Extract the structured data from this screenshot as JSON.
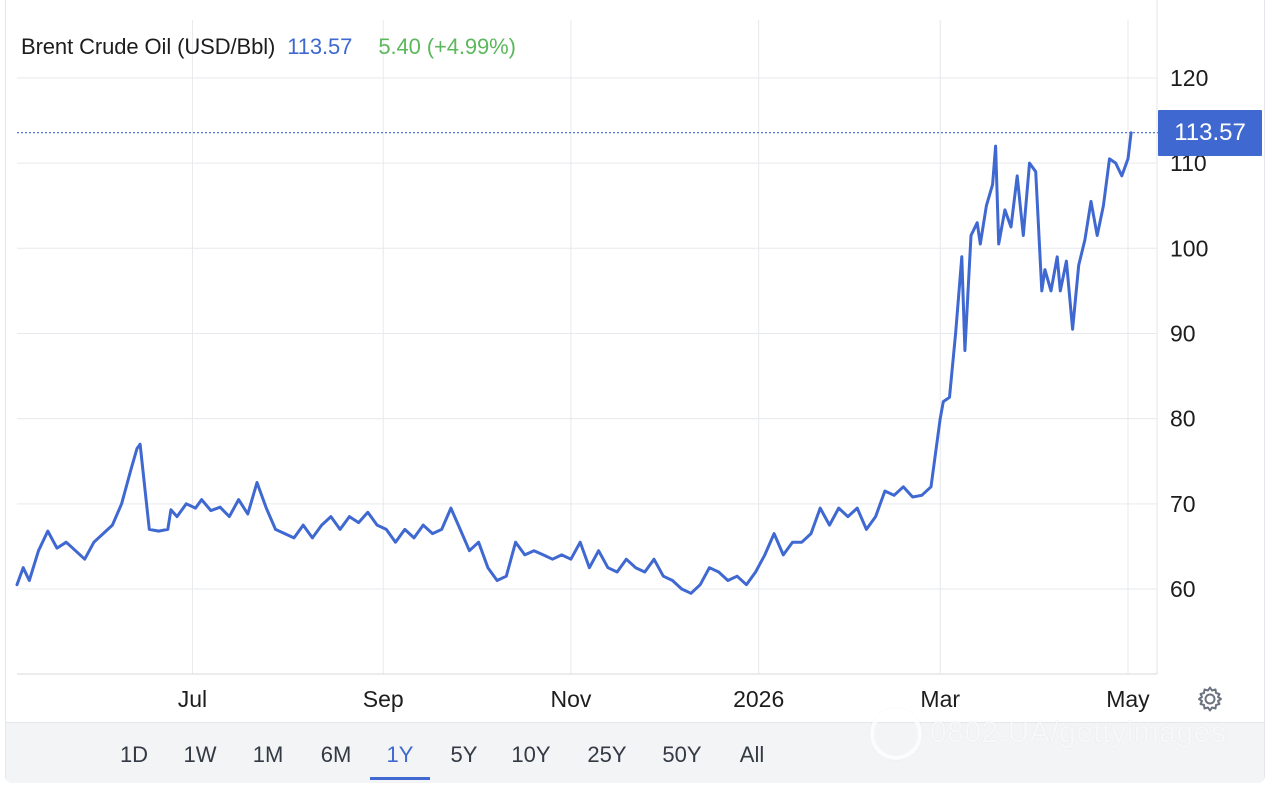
{
  "header": {
    "name": "Brent Crude Oil (USD/Bbl)",
    "price": "113.57",
    "change": "5.40 (+4.99%)"
  },
  "colors": {
    "line": "#3f68d1",
    "price_text": "#3f68d1",
    "change_text": "#5cb85c",
    "badge_bg": "#3f68d1",
    "grid": "#e6e9ed"
  },
  "price_badge": "113.57",
  "ranges": [
    {
      "label": "1D",
      "active": false
    },
    {
      "label": "1W",
      "active": false
    },
    {
      "label": "1M",
      "active": false
    },
    {
      "label": "6M",
      "active": false
    },
    {
      "label": "1Y",
      "active": true
    },
    {
      "label": "5Y",
      "active": false
    },
    {
      "label": "10Y",
      "active": false
    },
    {
      "label": "25Y",
      "active": false
    },
    {
      "label": "50Y",
      "active": false
    },
    {
      "label": "All",
      "active": false
    }
  ],
  "watermark": "0802.UA/gettyimages",
  "icons": {
    "settings": "gear-icon"
  },
  "chart_data": {
    "type": "line",
    "title": "Brent Crude Oil (USD/Bbl)",
    "ylim": [
      50,
      121
    ],
    "yticks": [
      60,
      70,
      80,
      90,
      100,
      110,
      120
    ],
    "xlim": [
      "2025-05-05",
      "2026-05-10"
    ],
    "xticks": [
      {
        "label": "Jul",
        "date": "2025-07-01"
      },
      {
        "label": "Sep",
        "date": "2025-09-01"
      },
      {
        "label": "Nov",
        "date": "2025-11-01"
      },
      {
        "label": "2026",
        "date": "2026-01-01"
      },
      {
        "label": "Mar",
        "date": "2026-03-01"
      },
      {
        "label": "May",
        "date": "2026-05-01"
      }
    ],
    "grid": true,
    "last_value": 113.57,
    "series": [
      {
        "name": "",
        "x": [
          "2025-05-05",
          "2025-05-07",
          "2025-05-09",
          "2025-05-12",
          "2025-05-15",
          "2025-05-18",
          "2025-05-21",
          "2025-05-24",
          "2025-05-27",
          "2025-05-30",
          "2025-06-02",
          "2025-06-05",
          "2025-06-08",
          "2025-06-11",
          "2025-06-13",
          "2025-06-14",
          "2025-06-17",
          "2025-06-20",
          "2025-06-23",
          "2025-06-24",
          "2025-06-26",
          "2025-06-29",
          "2025-07-02",
          "2025-07-04",
          "2025-07-07",
          "2025-07-10",
          "2025-07-13",
          "2025-07-16",
          "2025-07-19",
          "2025-07-22",
          "2025-07-25",
          "2025-07-28",
          "2025-07-31",
          "2025-08-03",
          "2025-08-06",
          "2025-08-09",
          "2025-08-12",
          "2025-08-15",
          "2025-08-18",
          "2025-08-21",
          "2025-08-24",
          "2025-08-27",
          "2025-08-30",
          "2025-09-02",
          "2025-09-05",
          "2025-09-08",
          "2025-09-11",
          "2025-09-14",
          "2025-09-17",
          "2025-09-20",
          "2025-09-23",
          "2025-09-26",
          "2025-09-29",
          "2025-10-02",
          "2025-10-05",
          "2025-10-08",
          "2025-10-11",
          "2025-10-14",
          "2025-10-17",
          "2025-10-20",
          "2025-10-23",
          "2025-10-26",
          "2025-10-29",
          "2025-11-01",
          "2025-11-04",
          "2025-11-07",
          "2025-11-10",
          "2025-11-13",
          "2025-11-16",
          "2025-11-19",
          "2025-11-22",
          "2025-11-25",
          "2025-11-28",
          "2025-12-01",
          "2025-12-04",
          "2025-12-07",
          "2025-12-10",
          "2025-12-13",
          "2025-12-16",
          "2025-12-19",
          "2025-12-22",
          "2025-12-25",
          "2025-12-28",
          "2025-12-31",
          "2026-01-03",
          "2026-01-06",
          "2026-01-09",
          "2026-01-12",
          "2026-01-15",
          "2026-01-18",
          "2026-01-21",
          "2026-01-24",
          "2026-01-27",
          "2026-01-30",
          "2026-02-02",
          "2026-02-05",
          "2026-02-08",
          "2026-02-11",
          "2026-02-14",
          "2026-02-17",
          "2026-02-20",
          "2026-02-23",
          "2026-02-26",
          "2026-03-01",
          "2026-03-02",
          "2026-03-04",
          "2026-03-06",
          "2026-03-08",
          "2026-03-09",
          "2026-03-11",
          "2026-03-13",
          "2026-03-14",
          "2026-03-16",
          "2026-03-18",
          "2026-03-19",
          "2026-03-20",
          "2026-03-22",
          "2026-03-24",
          "2026-03-26",
          "2026-03-28",
          "2026-03-30",
          "2026-04-01",
          "2026-04-03",
          "2026-04-04",
          "2026-04-06",
          "2026-04-08",
          "2026-04-09",
          "2026-04-11",
          "2026-04-13",
          "2026-04-15",
          "2026-04-17",
          "2026-04-19",
          "2026-04-21",
          "2026-04-23",
          "2026-04-25",
          "2026-04-27",
          "2026-04-29",
          "2026-05-01",
          "2026-05-02"
        ],
        "values": [
          60.5,
          62.5,
          61.0,
          64.5,
          66.8,
          64.8,
          65.5,
          64.5,
          63.5,
          65.5,
          66.5,
          67.5,
          70.0,
          74.0,
          76.5,
          77.0,
          67.0,
          66.8,
          67.0,
          69.3,
          68.5,
          70.0,
          69.5,
          70.5,
          69.2,
          69.6,
          68.5,
          70.5,
          68.8,
          72.5,
          69.5,
          67.0,
          66.5,
          66.0,
          67.5,
          66.0,
          67.5,
          68.5,
          67.0,
          68.5,
          67.8,
          69.0,
          67.5,
          67.0,
          65.5,
          67.0,
          66.0,
          67.5,
          66.5,
          67.0,
          69.5,
          67.0,
          64.5,
          65.5,
          62.5,
          61.0,
          61.5,
          65.5,
          64.0,
          64.5,
          64.0,
          63.5,
          64.0,
          63.5,
          65.5,
          62.5,
          64.5,
          62.5,
          62.0,
          63.5,
          62.5,
          62.0,
          63.5,
          61.5,
          61.0,
          60.0,
          59.5,
          60.5,
          62.5,
          62.0,
          61.0,
          61.5,
          60.5,
          62.0,
          64.0,
          66.5,
          64.0,
          65.5,
          65.5,
          66.5,
          69.5,
          67.5,
          69.5,
          68.5,
          69.5,
          67.0,
          68.5,
          71.5,
          71.0,
          72.0,
          70.8,
          71.0,
          72.0,
          80.0,
          82.0,
          82.5,
          90.0,
          99.0,
          88.0,
          101.5,
          103.0,
          100.5,
          105.0,
          107.5,
          112.0,
          100.5,
          104.5,
          102.5,
          108.5,
          101.5,
          110.0,
          109.0,
          95.0,
          97.5,
          95.0,
          99.0,
          95.0,
          98.5,
          90.5,
          98.0,
          101.0,
          105.5,
          101.5,
          105.0,
          110.5,
          110.0,
          108.5,
          110.5,
          113.57
        ]
      }
    ]
  }
}
